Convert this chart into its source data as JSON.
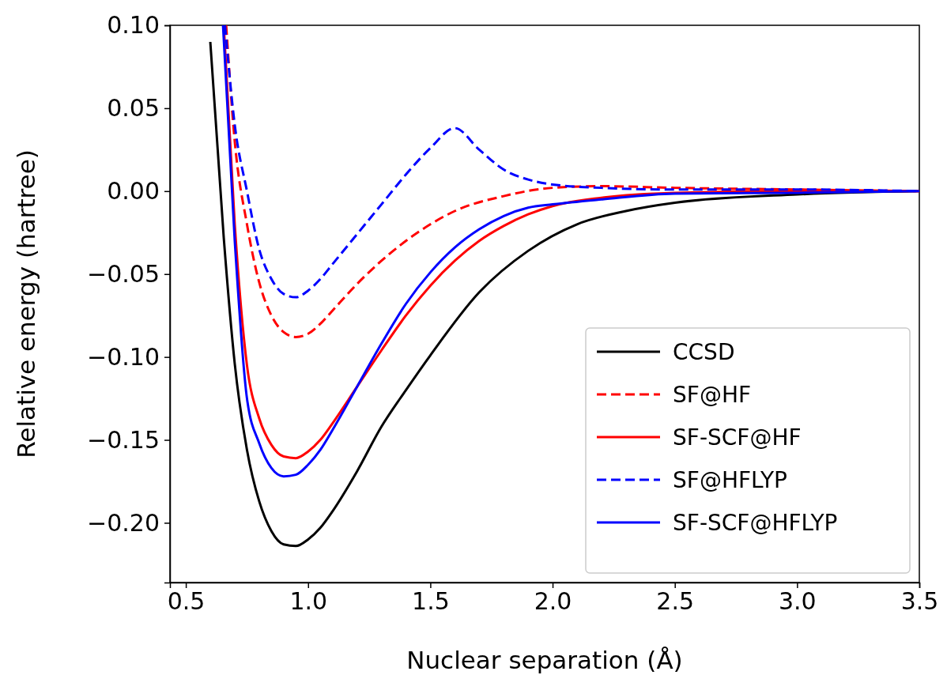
{
  "chart_data": {
    "type": "line",
    "xlabel": "Nuclear separation (Å)",
    "ylabel": "Relative energy (hartree)",
    "xlim": [
      0.435,
      3.5
    ],
    "ylim": [
      -0.236,
      0.1
    ],
    "xticks": [
      {
        "value": 0.5,
        "label": "0.5"
      },
      {
        "value": 1,
        "label": "1.0"
      },
      {
        "value": 1.5,
        "label": "1.5"
      },
      {
        "value": 2,
        "label": "2.0"
      },
      {
        "value": 2.5,
        "label": "2.5"
      },
      {
        "value": 3,
        "label": "3.0"
      },
      {
        "value": 3.5,
        "label": "3.5"
      }
    ],
    "yticks": [
      {
        "value": -0.2,
        "label": "−0.20"
      },
      {
        "value": -0.15,
        "label": "−0.15"
      },
      {
        "value": -0.1,
        "label": "−0.10"
      },
      {
        "value": -0.05,
        "label": "−0.05"
      },
      {
        "value": 0,
        "label": "0.00"
      },
      {
        "value": 0.05,
        "label": "0.05"
      },
      {
        "value": 0.1,
        "label": "0.10"
      }
    ],
    "grid": false,
    "legend": "bottom right",
    "marker": "none",
    "series": [
      {
        "name": "CCSD",
        "color": "#000000",
        "line_style": "solid",
        "x": [
          0.6,
          0.655,
          0.7,
          0.75,
          0.8,
          0.85,
          0.9,
          0.95,
          1.0,
          1.05,
          1.1,
          1.2,
          1.3,
          1.4,
          1.5,
          1.7,
          1.9,
          2.1,
          2.3,
          2.5,
          3.0,
          3.5
        ],
        "values": [
          0.09,
          -0.028,
          -0.104,
          -0.156,
          -0.187,
          -0.205,
          -0.213,
          -0.214,
          -0.21,
          -0.203,
          -0.193,
          -0.169,
          -0.142,
          -0.12,
          -0.099,
          -0.061,
          -0.036,
          -0.02,
          -0.012,
          -0.007,
          -0.002,
          0
        ]
      },
      {
        "name": "SF@HF",
        "color": "#ff0000",
        "line_style": "dashed",
        "x": [
          0.665,
          0.7,
          0.75,
          0.8,
          0.85,
          0.9,
          0.95,
          1.0,
          1.05,
          1.1,
          1.2,
          1.3,
          1.4,
          1.5,
          1.6,
          1.8,
          2.0,
          2.2,
          2.5,
          3.0,
          3.5
        ],
        "values": [
          0.1,
          0.03,
          -0.02,
          -0.055,
          -0.075,
          -0.085,
          -0.088,
          -0.086,
          -0.08,
          -0.072,
          -0.056,
          -0.042,
          -0.03,
          -0.02,
          -0.012,
          -0.003,
          0.002,
          0.003,
          0.002,
          0.001,
          0
        ]
      },
      {
        "name": "SF-SCF@HF",
        "color": "#ff0000",
        "line_style": "solid",
        "x": [
          0.655,
          0.7,
          0.75,
          0.8,
          0.85,
          0.9,
          0.95,
          1.0,
          1.05,
          1.1,
          1.2,
          1.3,
          1.4,
          1.5,
          1.6,
          1.7,
          1.8,
          1.9,
          2.0,
          2.2,
          2.5,
          3.0,
          3.5
        ],
        "values": [
          0.1,
          -0.02,
          -0.105,
          -0.137,
          -0.153,
          -0.16,
          -0.161,
          -0.157,
          -0.15,
          -0.14,
          -0.118,
          -0.096,
          -0.075,
          -0.057,
          -0.042,
          -0.03,
          -0.021,
          -0.014,
          -0.009,
          -0.004,
          -0.001,
          0,
          0
        ]
      },
      {
        "name": "SF@HFLYP",
        "color": "#0000ff",
        "line_style": "dashed",
        "x": [
          0.66,
          0.7,
          0.75,
          0.8,
          0.85,
          0.9,
          0.95,
          1.0,
          1.05,
          1.1,
          1.2,
          1.3,
          1.4,
          1.5,
          1.6,
          1.7,
          1.8,
          1.9,
          2.0,
          2.2,
          2.5,
          3.0,
          3.5
        ],
        "values": [
          0.1,
          0.04,
          0.0,
          -0.035,
          -0.053,
          -0.062,
          -0.064,
          -0.06,
          -0.053,
          -0.044,
          -0.026,
          -0.008,
          0.01,
          0.026,
          0.038,
          0.025,
          0.013,
          0.007,
          0.004,
          0.002,
          0.001,
          0.001,
          0
        ]
      },
      {
        "name": "SF-SCF@HFLYP",
        "color": "#0000ff",
        "line_style": "solid",
        "x": [
          0.652,
          0.7,
          0.75,
          0.8,
          0.85,
          0.9,
          0.95,
          1.0,
          1.05,
          1.1,
          1.2,
          1.3,
          1.4,
          1.5,
          1.6,
          1.7,
          1.8,
          1.9,
          2.0,
          2.2,
          2.5,
          3.0,
          3.5
        ],
        "values": [
          0.1,
          -0.03,
          -0.125,
          -0.152,
          -0.167,
          -0.172,
          -0.171,
          -0.165,
          -0.156,
          -0.144,
          -0.118,
          -0.092,
          -0.068,
          -0.049,
          -0.034,
          -0.023,
          -0.015,
          -0.01,
          -0.008,
          -0.005,
          -0.0015,
          -0.001,
          0
        ]
      }
    ]
  }
}
